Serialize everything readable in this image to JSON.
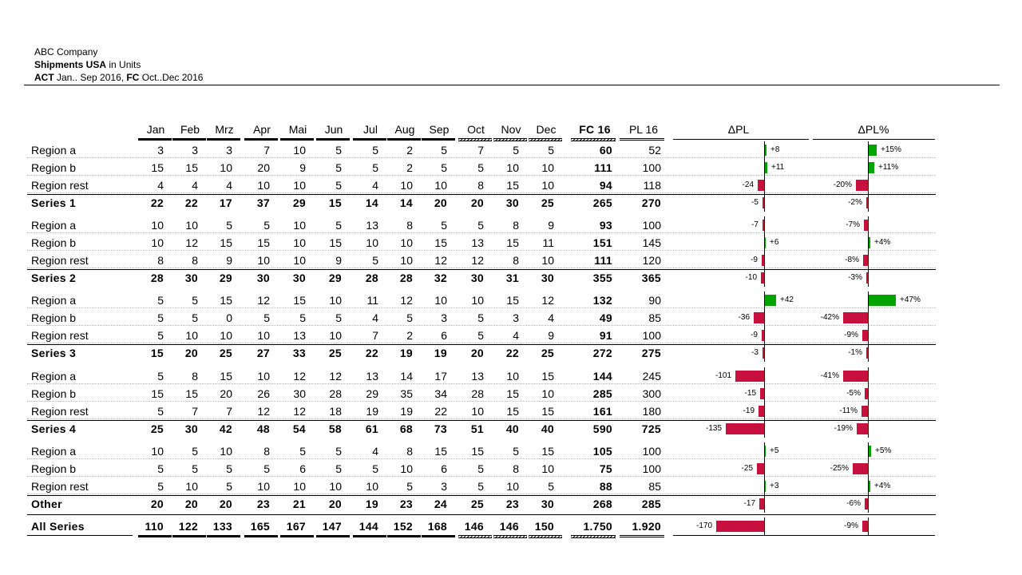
{
  "header": {
    "company": "ABC Company",
    "title_bold": "Shipments USA",
    "title_rest": " in Units",
    "act_bold": "ACT",
    "act_rest": " Jan.. Sep 2016, ",
    "fc_bold": "FC",
    "fc_rest": " Oct..Dec 2016"
  },
  "colors": {
    "positive": "#00a300",
    "negative": "#c8103e",
    "text": "#000000"
  },
  "chart_data": {
    "type": "table",
    "columns": [
      "Jan",
      "Feb",
      "Mrz",
      "Apr",
      "Mai",
      "Jun",
      "Jul",
      "Aug",
      "Sep",
      "Oct",
      "Nov",
      "Dec",
      "FC 16",
      "PL 16",
      "ΔPL",
      "ΔPL%"
    ],
    "groups": [
      {
        "rows": [
          {
            "label": "Region a",
            "months": [
              "3",
              "3",
              "3",
              "7",
              "10",
              "5",
              "5",
              "2",
              "5",
              "7",
              "5",
              "5"
            ],
            "fc": "60",
            "pl": "52",
            "dpl": 8,
            "dpl_label": "+8",
            "dpct": 15,
            "dpct_label": "+15%"
          },
          {
            "label": "Region b",
            "months": [
              "15",
              "15",
              "10",
              "20",
              "9",
              "5",
              "5",
              "2",
              "5",
              "5",
              "10",
              "10"
            ],
            "fc": "111",
            "pl": "100",
            "dpl": 11,
            "dpl_label": "+11",
            "dpct": 11,
            "dpct_label": "+11%"
          },
          {
            "label": "Region rest",
            "months": [
              "4",
              "4",
              "4",
              "10",
              "10",
              "5",
              "4",
              "10",
              "10",
              "8",
              "15",
              "10"
            ],
            "fc": "94",
            "pl": "118",
            "dpl": -24,
            "dpl_label": "-24",
            "dpct": -20,
            "dpct_label": "-20%"
          }
        ],
        "total": {
          "label": "Series 1",
          "months": [
            "22",
            "22",
            "17",
            "37",
            "29",
            "15",
            "14",
            "14",
            "20",
            "20",
            "30",
            "25"
          ],
          "fc": "265",
          "pl": "270",
          "dpl": -5,
          "dpl_label": "-5",
          "dpct": -2,
          "dpct_label": "-2%"
        }
      },
      {
        "rows": [
          {
            "label": "Region a",
            "months": [
              "10",
              "10",
              "5",
              "5",
              "10",
              "5",
              "13",
              "8",
              "5",
              "5",
              "8",
              "9"
            ],
            "fc": "93",
            "pl": "100",
            "dpl": -7,
            "dpl_label": "-7",
            "dpct": -7,
            "dpct_label": "-7%"
          },
          {
            "label": "Region b",
            "months": [
              "10",
              "12",
              "15",
              "15",
              "10",
              "15",
              "10",
              "10",
              "15",
              "13",
              "15",
              "11"
            ],
            "fc": "151",
            "pl": "145",
            "dpl": 6,
            "dpl_label": "+6",
            "dpct": 4,
            "dpct_label": "+4%"
          },
          {
            "label": "Region rest",
            "months": [
              "8",
              "8",
              "9",
              "10",
              "10",
              "9",
              "5",
              "10",
              "12",
              "12",
              "8",
              "10"
            ],
            "fc": "111",
            "pl": "120",
            "dpl": -9,
            "dpl_label": "-9",
            "dpct": -8,
            "dpct_label": "-8%"
          }
        ],
        "total": {
          "label": "Series 2",
          "months": [
            "28",
            "30",
            "29",
            "30",
            "30",
            "29",
            "28",
            "28",
            "32",
            "30",
            "31",
            "30"
          ],
          "fc": "355",
          "pl": "365",
          "dpl": -10,
          "dpl_label": "-10",
          "dpct": -3,
          "dpct_label": "-3%"
        }
      },
      {
        "rows": [
          {
            "label": "Region a",
            "months": [
              "5",
              "5",
              "15",
              "12",
              "15",
              "10",
              "11",
              "12",
              "10",
              "10",
              "15",
              "12"
            ],
            "fc": "132",
            "pl": "90",
            "dpl": 42,
            "dpl_label": "+42",
            "dpct": 47,
            "dpct_label": "+47%"
          },
          {
            "label": "Region b",
            "months": [
              "5",
              "5",
              "0",
              "5",
              "5",
              "5",
              "4",
              "5",
              "3",
              "5",
              "3",
              "4"
            ],
            "fc": "49",
            "pl": "85",
            "dpl": -36,
            "dpl_label": "-36",
            "dpct": -42,
            "dpct_label": "-42%"
          },
          {
            "label": "Region rest",
            "months": [
              "5",
              "10",
              "10",
              "10",
              "13",
              "10",
              "7",
              "2",
              "6",
              "5",
              "4",
              "9"
            ],
            "fc": "91",
            "pl": "100",
            "dpl": -9,
            "dpl_label": "-9",
            "dpct": -9,
            "dpct_label": "-9%"
          }
        ],
        "total": {
          "label": "Series 3",
          "months": [
            "15",
            "20",
            "25",
            "27",
            "33",
            "25",
            "22",
            "19",
            "19",
            "20",
            "22",
            "25"
          ],
          "fc": "272",
          "pl": "275",
          "dpl": -3,
          "dpl_label": "-3",
          "dpct": -1,
          "dpct_label": "-1%"
        }
      },
      {
        "rows": [
          {
            "label": "Region a",
            "months": [
              "5",
              "8",
              "15",
              "10",
              "12",
              "12",
              "13",
              "14",
              "17",
              "13",
              "10",
              "15"
            ],
            "fc": "144",
            "pl": "245",
            "dpl": -101,
            "dpl_label": "-101",
            "dpct": -41,
            "dpct_label": "-41%"
          },
          {
            "label": "Region b",
            "months": [
              "15",
              "15",
              "20",
              "26",
              "30",
              "28",
              "29",
              "35",
              "34",
              "28",
              "15",
              "10"
            ],
            "fc": "285",
            "pl": "300",
            "dpl": -15,
            "dpl_label": "-15",
            "dpct": -5,
            "dpct_label": "-5%"
          },
          {
            "label": "Region rest",
            "months": [
              "5",
              "7",
              "7",
              "12",
              "12",
              "18",
              "19",
              "19",
              "22",
              "10",
              "15",
              "15"
            ],
            "fc": "161",
            "pl": "180",
            "dpl": -19,
            "dpl_label": "-19",
            "dpct": -11,
            "dpct_label": "-11%"
          }
        ],
        "total": {
          "label": "Series 4",
          "months": [
            "25",
            "30",
            "42",
            "48",
            "54",
            "58",
            "61",
            "68",
            "73",
            "51",
            "40",
            "40"
          ],
          "fc": "590",
          "pl": "725",
          "dpl": -135,
          "dpl_label": "-135",
          "dpct": -19,
          "dpct_label": "-19%"
        }
      },
      {
        "rows": [
          {
            "label": "Region a",
            "months": [
              "10",
              "5",
              "10",
              "8",
              "5",
              "5",
              "4",
              "8",
              "15",
              "15",
              "5",
              "15"
            ],
            "fc": "105",
            "pl": "100",
            "dpl": 5,
            "dpl_label": "+5",
            "dpct": 5,
            "dpct_label": "+5%"
          },
          {
            "label": "Region b",
            "months": [
              "5",
              "5",
              "5",
              "5",
              "6",
              "5",
              "5",
              "10",
              "6",
              "5",
              "8",
              "10"
            ],
            "fc": "75",
            "pl": "100",
            "dpl": -25,
            "dpl_label": "-25",
            "dpct": -25,
            "dpct_label": "-25%"
          },
          {
            "label": "Region rest",
            "months": [
              "5",
              "10",
              "5",
              "10",
              "10",
              "10",
              "10",
              "5",
              "3",
              "5",
              "10",
              "5"
            ],
            "fc": "88",
            "pl": "85",
            "dpl": 3,
            "dpl_label": "+3",
            "dpct": 4,
            "dpct_label": "+4%"
          }
        ],
        "total": {
          "label": "Other",
          "months": [
            "20",
            "20",
            "20",
            "23",
            "21",
            "20",
            "19",
            "23",
            "24",
            "25",
            "23",
            "30"
          ],
          "fc": "268",
          "pl": "285",
          "dpl": -17,
          "dpl_label": "-17",
          "dpct": -6,
          "dpct_label": "-6%"
        }
      }
    ],
    "grand_total": {
      "label": "All Series",
      "months": [
        "110",
        "122",
        "133",
        "165",
        "167",
        "147",
        "144",
        "152",
        "168",
        "146",
        "146",
        "150"
      ],
      "fc": "1.750",
      "pl": "1.920",
      "dpl": -170,
      "dpl_label": "-170",
      "dpct": -9,
      "dpct_label": "-9%"
    },
    "dpl_range": [
      -170,
      42
    ],
    "dpct_range": [
      -42,
      47
    ]
  }
}
